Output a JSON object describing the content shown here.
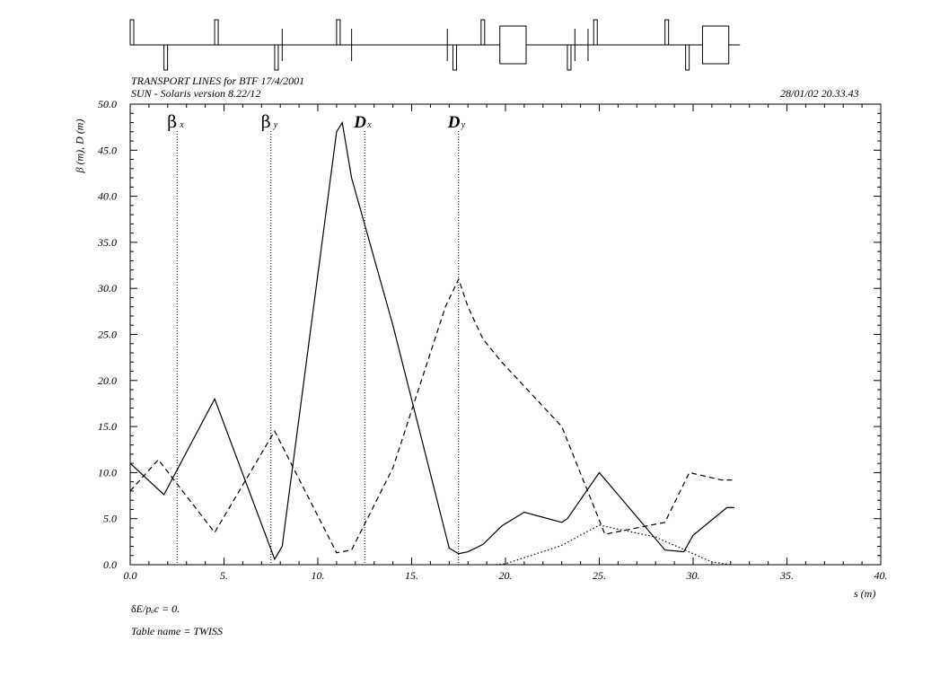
{
  "header": {
    "title": "TRANSPORT LINES for BTF 17/4/2001",
    "version": "SUN - Solaris version 8.22/12",
    "timestamp": "28/01/02  20.33.43"
  },
  "footer": {
    "parameter_symbol": "δ",
    "parameter_rest": "E/pₒc  =  0.",
    "table_name": "Table name = TWISS"
  },
  "chart_data": {
    "type": "line",
    "xlabel": "s (m)",
    "ylabel": "β (m),  D (m)",
    "xlim": [
      0,
      40
    ],
    "ylim": [
      0,
      50
    ],
    "x_ticks": [
      "0.0",
      "5.",
      "10.",
      "15.",
      "20.",
      "25.",
      "30.",
      "35.",
      "40."
    ],
    "y_ticks": [
      "0.0",
      "5.0",
      "10.0",
      "15.0",
      "20.0",
      "25.0",
      "30.0",
      "35.0",
      "40.0",
      "45.0",
      "50.0"
    ],
    "legend_markers": [
      {
        "symbol": "β",
        "sub": "x",
        "x": 2.5
      },
      {
        "symbol": "β",
        "sub": "y",
        "x": 7.5
      },
      {
        "symbol": "D",
        "sub": "x",
        "x": 12.5
      },
      {
        "symbol": "D",
        "sub": "y",
        "x": 17.5
      }
    ],
    "series": [
      {
        "style": "solid",
        "points": [
          [
            0,
            11.0
          ],
          [
            1.8,
            7.6
          ],
          [
            4.5,
            18.0
          ],
          [
            7.7,
            0.6
          ],
          [
            8.1,
            2.0
          ],
          [
            11.0,
            47.0
          ],
          [
            11.3,
            48.0
          ],
          [
            11.8,
            42.0
          ],
          [
            14.0,
            26.0
          ],
          [
            17.0,
            1.8
          ],
          [
            17.5,
            1.2
          ],
          [
            18.0,
            1.4
          ],
          [
            18.8,
            2.2
          ],
          [
            19.8,
            4.2
          ],
          [
            21.0,
            5.7
          ],
          [
            23.0,
            4.6
          ],
          [
            23.3,
            5.0
          ],
          [
            25.0,
            10.0
          ],
          [
            28.5,
            1.6
          ],
          [
            29.5,
            1.4
          ],
          [
            30.0,
            3.2
          ],
          [
            31.8,
            6.2
          ],
          [
            32.2,
            6.2
          ]
        ]
      },
      {
        "style": "dashed",
        "points": [
          [
            0,
            8.0
          ],
          [
            1.5,
            11.4
          ],
          [
            4.5,
            3.5
          ],
          [
            7.7,
            14.5
          ],
          [
            11.0,
            1.3
          ],
          [
            11.8,
            1.6
          ],
          [
            14.0,
            10.5
          ],
          [
            16.8,
            28.0
          ],
          [
            17.5,
            31.0
          ],
          [
            18.0,
            28.0
          ],
          [
            18.8,
            24.5
          ],
          [
            19.8,
            22.0
          ],
          [
            23.0,
            15.0
          ],
          [
            25.3,
            3.3
          ],
          [
            28.5,
            4.6
          ],
          [
            29.8,
            10.0
          ],
          [
            31.5,
            9.2
          ],
          [
            32.2,
            9.2
          ]
        ]
      },
      {
        "style": "dotted",
        "points": [
          [
            19.5,
            0.0
          ],
          [
            20.0,
            0.1
          ],
          [
            23.0,
            2.1
          ],
          [
            25.0,
            4.3
          ],
          [
            28.0,
            3.0
          ],
          [
            31.0,
            0.3
          ],
          [
            32.0,
            0.0
          ]
        ]
      }
    ],
    "beamline": {
      "x_range": [
        0,
        32.5
      ],
      "focusing_quads": [
        0.0,
        4.5,
        11.0,
        18.7,
        24.7,
        28.5
      ],
      "defocusing_quads": [
        1.8,
        7.7,
        17.2,
        23.3,
        29.6
      ],
      "correctors": [
        8.1,
        11.8,
        16.9,
        23.7,
        24.4
      ],
      "dipoles": [
        [
          19.7,
          21.1
        ],
        [
          30.5,
          31.9
        ]
      ]
    }
  }
}
